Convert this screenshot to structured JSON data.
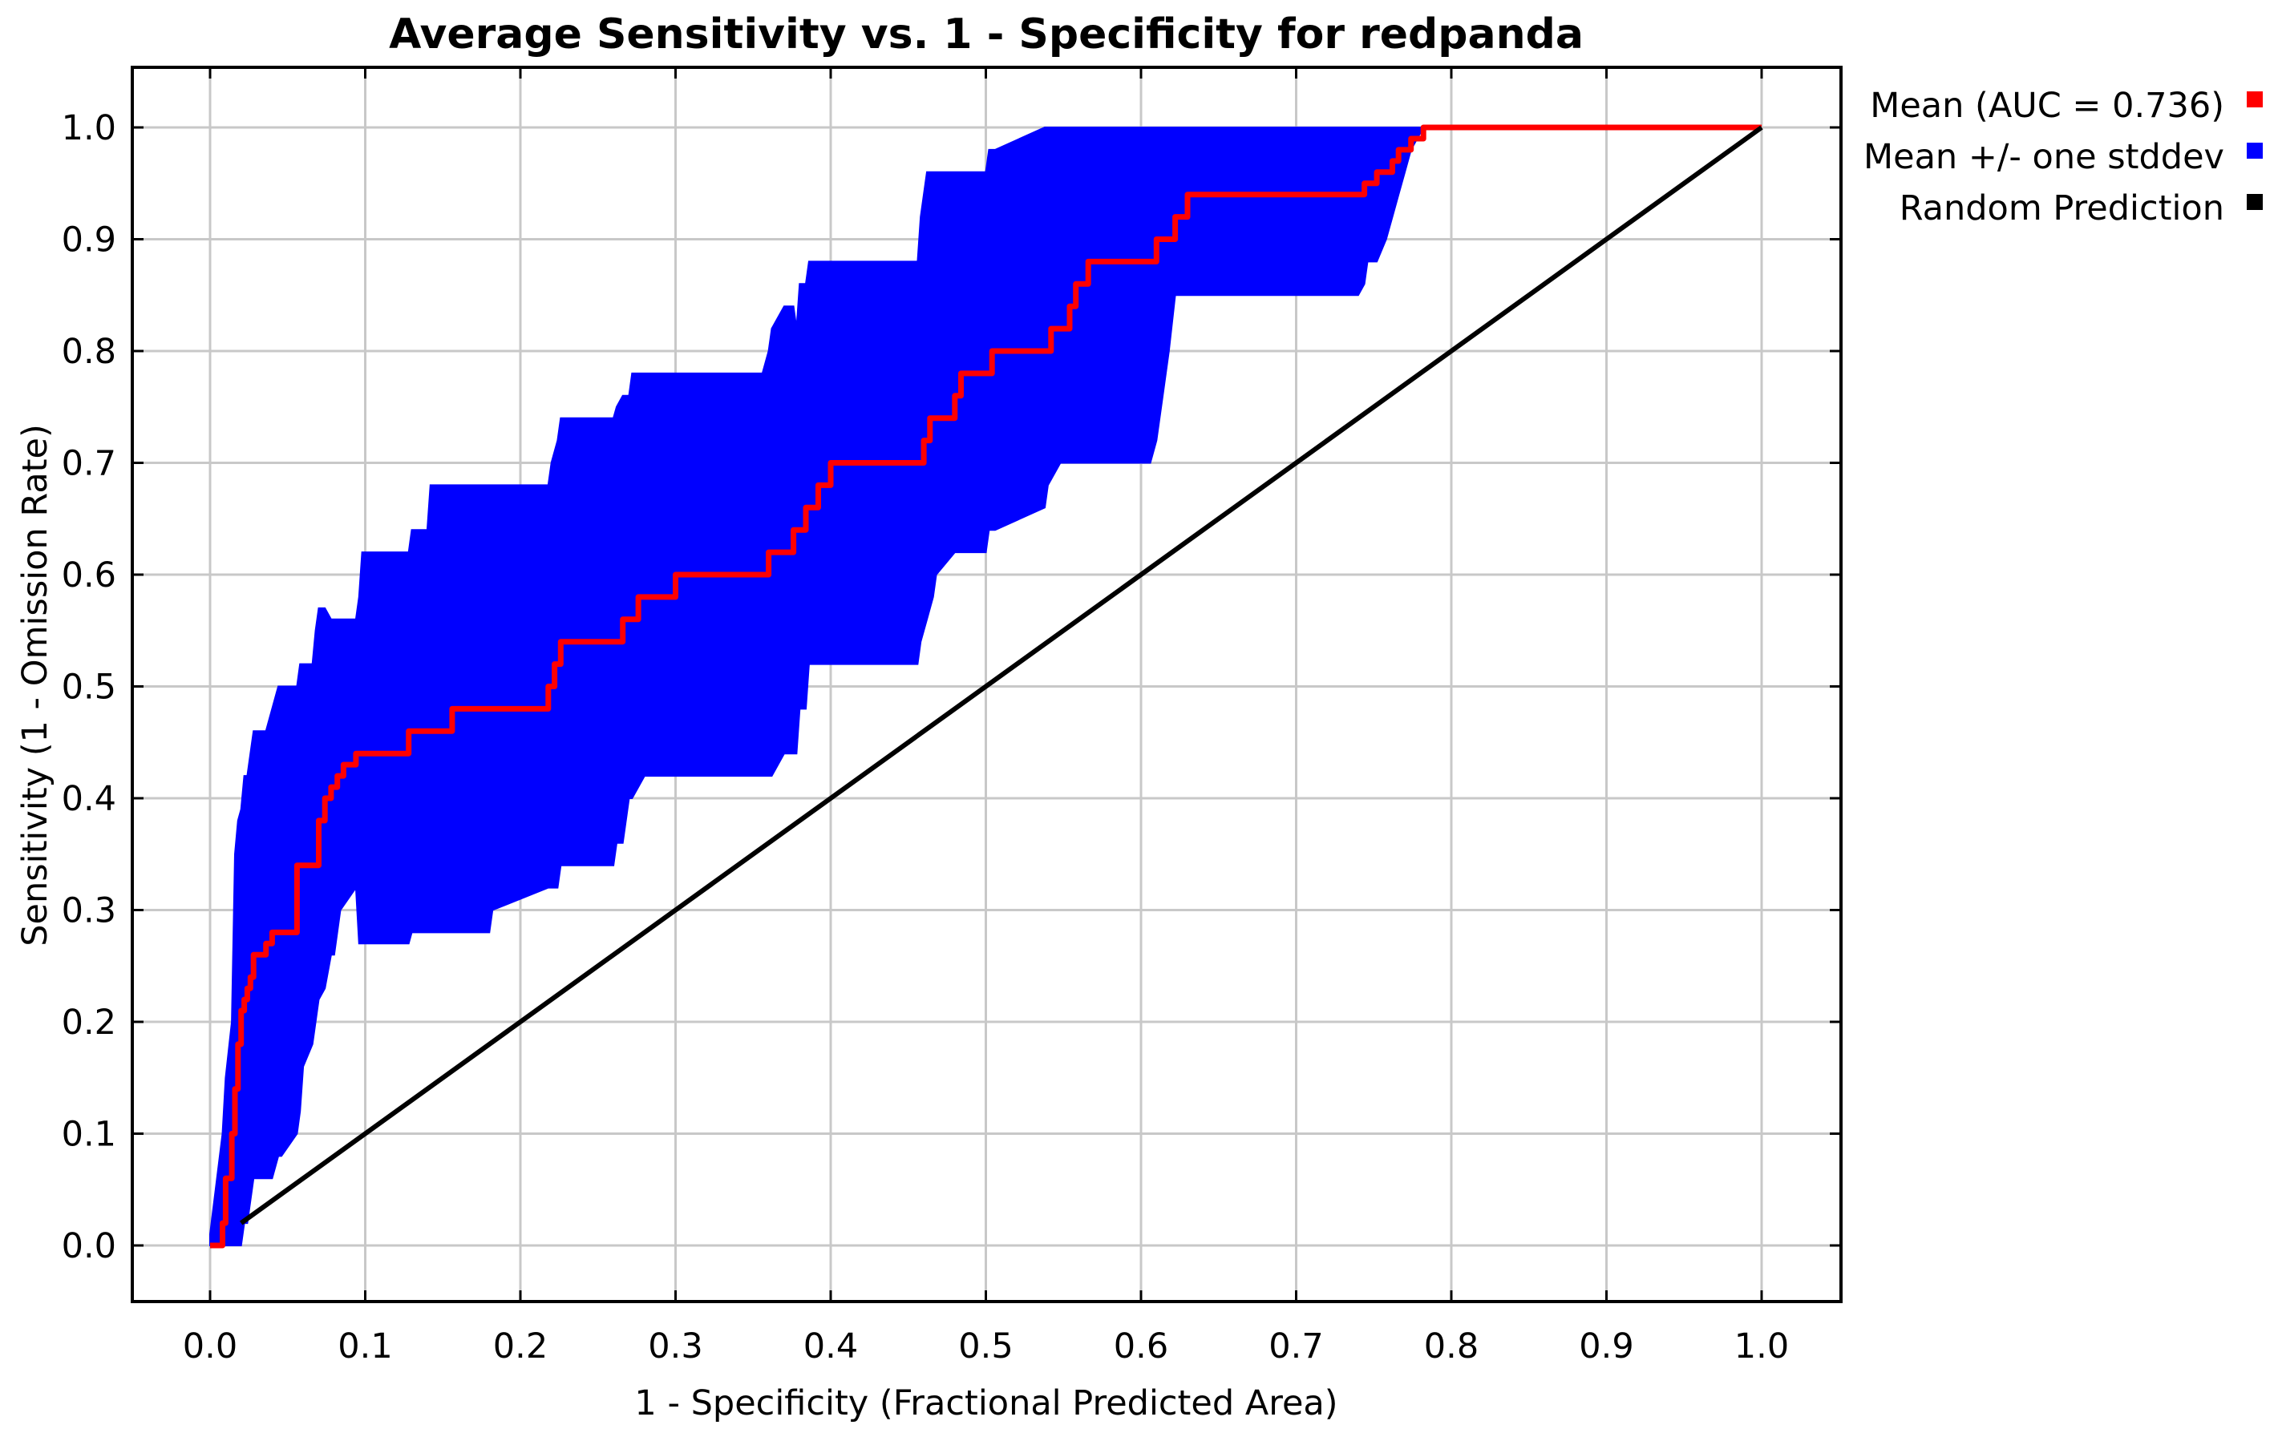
{
  "chart_data": {
    "type": "line",
    "title": "Average Sensitivity vs. 1 - Specificity for redpanda",
    "xlabel": "1 - Specificity (Fractional Predicted Area)",
    "ylabel": "Sensitivity (1 - Omission Rate)",
    "xlim": [
      0.0,
      1.0
    ],
    "ylim": [
      0.0,
      1.0
    ],
    "x_ticks": [
      "0.0",
      "0.1",
      "0.2",
      "0.3",
      "0.4",
      "0.5",
      "0.6",
      "0.7",
      "0.8",
      "0.9",
      "1.0"
    ],
    "y_ticks": [
      "0.0",
      "0.1",
      "0.2",
      "0.3",
      "0.4",
      "0.5",
      "0.6",
      "0.7",
      "0.8",
      "0.9",
      "1.0"
    ],
    "grid": true,
    "legend_position": "outside-top-right",
    "legend": [
      {
        "label": "Mean (AUC = 0.736)",
        "color": "#ff0000"
      },
      {
        "label": "Mean +/- one stddev",
        "color": "#0000ff"
      },
      {
        "label": "Random Prediction",
        "color": "#000000"
      }
    ],
    "series": [
      {
        "name": "Mean (AUC = 0.736)",
        "kind": "line",
        "color": "#ff0000",
        "x": [
          0.0,
          0.005,
          0.008,
          0.01,
          0.012,
          0.014,
          0.016,
          0.018,
          0.02,
          0.022,
          0.024,
          0.026,
          0.028,
          0.032,
          0.036,
          0.04,
          0.044,
          0.056,
          0.058,
          0.07,
          0.074,
          0.078,
          0.082,
          0.086,
          0.094,
          0.12,
          0.128,
          0.14,
          0.156,
          0.18,
          0.218,
          0.222,
          0.226,
          0.26,
          0.266,
          0.27,
          0.276,
          0.28,
          0.3,
          0.356,
          0.36,
          0.37,
          0.376,
          0.38,
          0.384,
          0.388,
          0.392,
          0.396,
          0.4,
          0.456,
          0.46,
          0.464,
          0.468,
          0.48,
          0.484,
          0.5,
          0.504,
          0.538,
          0.542,
          0.55,
          0.554,
          0.558,
          0.562,
          0.566,
          0.57,
          0.606,
          0.61,
          0.618,
          0.622,
          0.626,
          0.63,
          0.74,
          0.744,
          0.748,
          0.752,
          0.758,
          0.762,
          0.766,
          0.77,
          0.774,
          0.778,
          0.782,
          1.0
        ],
        "values": [
          0.0,
          0.0,
          0.02,
          0.06,
          0.06,
          0.1,
          0.14,
          0.18,
          0.21,
          0.22,
          0.23,
          0.24,
          0.26,
          0.26,
          0.27,
          0.28,
          0.28,
          0.34,
          0.34,
          0.38,
          0.4,
          0.41,
          0.42,
          0.43,
          0.44,
          0.44,
          0.46,
          0.46,
          0.48,
          0.48,
          0.5,
          0.52,
          0.54,
          0.54,
          0.56,
          0.56,
          0.58,
          0.58,
          0.6,
          0.6,
          0.62,
          0.62,
          0.64,
          0.64,
          0.66,
          0.66,
          0.68,
          0.68,
          0.7,
          0.7,
          0.72,
          0.74,
          0.74,
          0.76,
          0.78,
          0.78,
          0.8,
          0.8,
          0.82,
          0.82,
          0.84,
          0.86,
          0.86,
          0.88,
          0.88,
          0.88,
          0.9,
          0.9,
          0.92,
          0.92,
          0.94,
          0.94,
          0.95,
          0.95,
          0.96,
          0.96,
          0.97,
          0.98,
          0.98,
          0.99,
          0.99,
          1.0,
          1.0
        ]
      },
      {
        "name": "Mean +/- one stddev",
        "kind": "band",
        "color": "#0000ff",
        "x": [
          0.0,
          0.008,
          0.01,
          0.014,
          0.016,
          0.018,
          0.02,
          0.022,
          0.024,
          0.026,
          0.028,
          0.03,
          0.034,
          0.036,
          0.04,
          0.044,
          0.046,
          0.056,
          0.058,
          0.06,
          0.066,
          0.068,
          0.07,
          0.074,
          0.078,
          0.08,
          0.084,
          0.094,
          0.096,
          0.098,
          0.1,
          0.128,
          0.13,
          0.14,
          0.142,
          0.172,
          0.174,
          0.18,
          0.182,
          0.218,
          0.22,
          0.224,
          0.226,
          0.23,
          0.26,
          0.262,
          0.266,
          0.27,
          0.272,
          0.28,
          0.282,
          0.29,
          0.294,
          0.356,
          0.36,
          0.362,
          0.37,
          0.376,
          0.378,
          0.38,
          0.384,
          0.386,
          0.39,
          0.392,
          0.396,
          0.4,
          0.404,
          0.456,
          0.458,
          0.462,
          0.466,
          0.468,
          0.48,
          0.484,
          0.5,
          0.502,
          0.506,
          0.538,
          0.54,
          0.548,
          0.552,
          0.558,
          0.562,
          0.566,
          0.57,
          0.606,
          0.61,
          0.614,
          0.618,
          0.622,
          0.626,
          0.63,
          0.74,
          0.744,
          0.746,
          0.748,
          0.752,
          0.758,
          0.762,
          0.766,
          0.77,
          0.774,
          0.778,
          0.782,
          1.0
        ],
        "upper": [
          0.01,
          0.1,
          0.15,
          0.2,
          0.35,
          0.38,
          0.39,
          0.42,
          0.42,
          0.44,
          0.46,
          0.46,
          0.46,
          0.46,
          0.48,
          0.5,
          0.5,
          0.5,
          0.52,
          0.52,
          0.52,
          0.55,
          0.57,
          0.57,
          0.56,
          0.56,
          0.56,
          0.56,
          0.58,
          0.62,
          0.62,
          0.62,
          0.64,
          0.64,
          0.68,
          0.68,
          0.68,
          0.68,
          0.68,
          0.68,
          0.7,
          0.72,
          0.74,
          0.74,
          0.74,
          0.75,
          0.76,
          0.76,
          0.78,
          0.78,
          0.78,
          0.78,
          0.78,
          0.78,
          0.8,
          0.82,
          0.84,
          0.84,
          0.82,
          0.86,
          0.86,
          0.88,
          0.88,
          0.88,
          0.88,
          0.88,
          0.88,
          0.88,
          0.92,
          0.96,
          0.96,
          0.96,
          0.96,
          0.96,
          0.96,
          0.98,
          0.98,
          1.0,
          1.0,
          1.0,
          1.0,
          1.0,
          1.0,
          1.0,
          1.0,
          1.0,
          1.0,
          1.0,
          1.0,
          1.0,
          1.0,
          1.0,
          1.0,
          1.0,
          1.0,
          1.0,
          1.0,
          1.0,
          1.0,
          1.0,
          1.0,
          1.0,
          1.0,
          1.0,
          1.0
        ],
        "lower": [
          0.0,
          0.0,
          0.0,
          0.0,
          0.0,
          0.0,
          0.0,
          0.02,
          0.02,
          0.04,
          0.06,
          0.06,
          0.06,
          0.06,
          0.06,
          0.08,
          0.08,
          0.1,
          0.12,
          0.16,
          0.18,
          0.2,
          0.22,
          0.23,
          0.26,
          0.26,
          0.3,
          0.32,
          0.27,
          0.27,
          0.27,
          0.27,
          0.28,
          0.28,
          0.28,
          0.28,
          0.28,
          0.28,
          0.3,
          0.32,
          0.32,
          0.32,
          0.34,
          0.34,
          0.34,
          0.36,
          0.36,
          0.4,
          0.4,
          0.42,
          0.42,
          0.42,
          0.42,
          0.42,
          0.42,
          0.42,
          0.44,
          0.44,
          0.44,
          0.48,
          0.48,
          0.52,
          0.52,
          0.52,
          0.52,
          0.52,
          0.52,
          0.52,
          0.54,
          0.56,
          0.58,
          0.6,
          0.62,
          0.62,
          0.62,
          0.64,
          0.64,
          0.66,
          0.68,
          0.7,
          0.7,
          0.7,
          0.7,
          0.7,
          0.7,
          0.7,
          0.72,
          0.76,
          0.8,
          0.85,
          0.85,
          0.85,
          0.85,
          0.86,
          0.88,
          0.88,
          0.88,
          0.9,
          0.92,
          0.94,
          0.96,
          0.98,
          0.99,
          1.0,
          1.0
        ]
      },
      {
        "name": "Random Prediction",
        "kind": "line",
        "color": "#000000",
        "x": [
          0.02,
          1.0
        ],
        "values": [
          0.02,
          1.0
        ]
      }
    ]
  }
}
